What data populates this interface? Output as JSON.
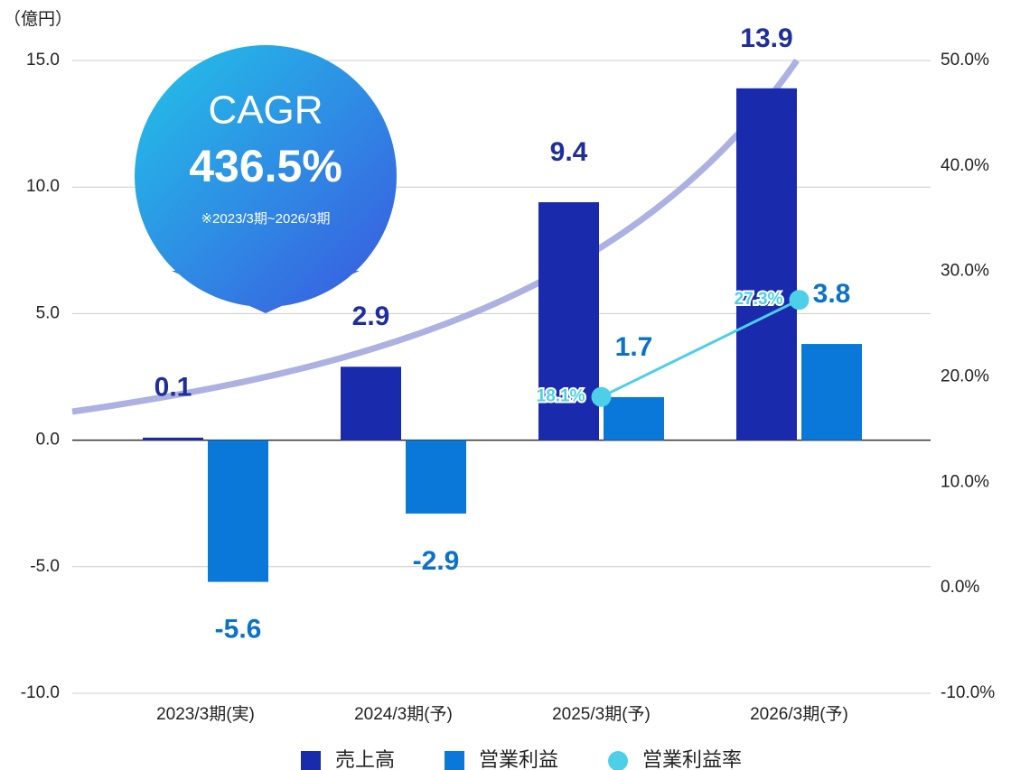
{
  "chart_data": {
    "type": "bar",
    "y_label": "（億円）",
    "categories": [
      "2023/3期(実)",
      "2024/3期(予)",
      "2025/3期(予)",
      "2026/3期(予)"
    ],
    "series": [
      {
        "name": "売上高",
        "color": "#1a2aad",
        "label_color": "#1f2e9e",
        "values": [
          0.1,
          2.9,
          9.4,
          13.9
        ]
      },
      {
        "name": "営業利益",
        "color": "#0a78d8",
        "label_color": "#0a72c8",
        "values": [
          -5.6,
          -2.9,
          1.7,
          3.8
        ]
      },
      {
        "name": "営業利益率",
        "type": "line",
        "axis": "y2",
        "color": "#4dcfea",
        "values": [
          null,
          null,
          18.1,
          27.3
        ],
        "value_labels": [
          null,
          null,
          "18.1%",
          "27.3%"
        ]
      }
    ],
    "ylim": [
      -10,
      15
    ],
    "yticks": [
      {
        "value": -10,
        "label": "-10.0"
      },
      {
        "value": -5,
        "label": "-5.0"
      },
      {
        "value": 0,
        "label": "0.0"
      },
      {
        "value": 5,
        "label": "5.0"
      },
      {
        "value": 10,
        "label": "10.0"
      },
      {
        "value": 15,
        "label": "15.0"
      }
    ],
    "y2lim": [
      -10,
      50
    ],
    "y2ticks": [
      {
        "value": -10,
        "label": "-10.0%"
      },
      {
        "value": 0,
        "label": "0.0%"
      },
      {
        "value": 10,
        "label": "10.0%"
      },
      {
        "value": 20,
        "label": "20.0%"
      },
      {
        "value": 30,
        "label": "30.0%"
      },
      {
        "value": 40,
        "label": "40.0%"
      },
      {
        "value": 50,
        "label": "50.0%"
      }
    ],
    "grid": true,
    "legend": "bottom",
    "annotation": {
      "title": "CAGR",
      "value": "436.5%",
      "note": "※2023/3期~2026/3期"
    }
  }
}
